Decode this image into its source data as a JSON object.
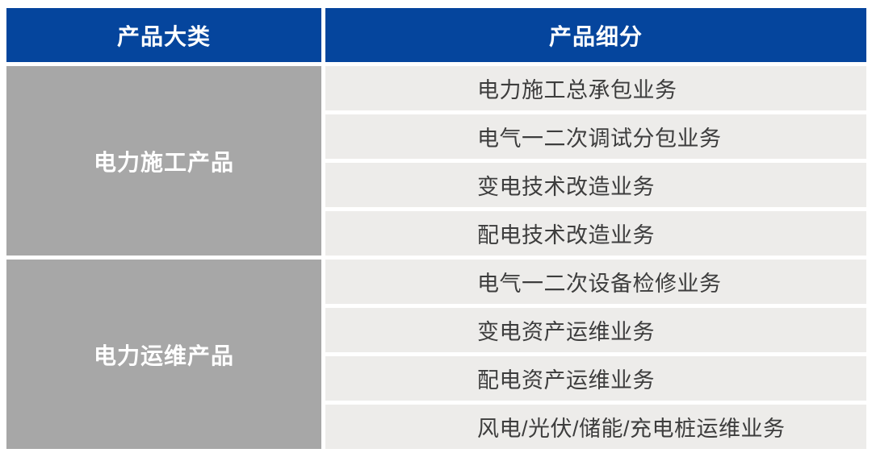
{
  "colors": {
    "header_bg": "#05459D",
    "header_text": "#FFFFFF",
    "category_bg": "#A7A7A7",
    "category_text": "#FFFFFF",
    "row_bg": "#EDECEA",
    "row_text": "#3D3D3D",
    "gutter": "#FFFFFF"
  },
  "chart_data": {
    "type": "table",
    "columns": [
      "产品大类",
      "产品细分"
    ],
    "groups": [
      {
        "category": "电力施工产品",
        "items": [
          "电力施工总承包业务",
          "电气一二次调试分包业务",
          "变电技术改造业务",
          "配电技术改造业务"
        ]
      },
      {
        "category": "电力运维产品",
        "items": [
          "电气一二次设备检修业务",
          "变电资产运维业务",
          "配电资产运维业务",
          "风电/光伏/储能/充电桩运维业务"
        ]
      }
    ],
    "layout": {
      "header_row": true,
      "merged_category_cells": true,
      "rows_per_group": 4
    }
  }
}
